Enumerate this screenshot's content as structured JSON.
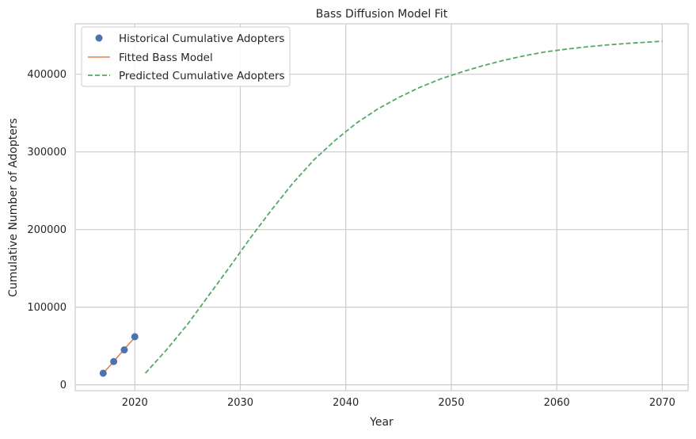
{
  "chart_data": {
    "type": "line",
    "title": "Bass Diffusion Model Fit",
    "xlabel": "Year",
    "ylabel": "Cumulative Number of Adopters",
    "xlim": [
      2014.35,
      2072.45
    ],
    "ylim": [
      -7500,
      465000
    ],
    "xticks": [
      2020,
      2030,
      2040,
      2050,
      2060,
      2070
    ],
    "yticks": [
      0,
      100000,
      200000,
      300000,
      400000
    ],
    "grid": true,
    "legend_position": "top-left",
    "series": [
      {
        "name": "Historical Cumulative Adopters",
        "kind": "scatter",
        "color": "#4c72b0",
        "x": [
          2017,
          2018,
          2019,
          2020
        ],
        "y": [
          15000,
          30000,
          45000,
          62000
        ]
      },
      {
        "name": "Fitted Bass Model",
        "kind": "line",
        "color": "#dd8452",
        "x": [
          2017,
          2018,
          2019,
          2020
        ],
        "y": [
          15000,
          30000,
          46000,
          61000
        ]
      },
      {
        "name": "Predicted Cumulative Adopters",
        "kind": "dashed-line",
        "color": "#55a868",
        "x": [
          2021,
          2023,
          2025,
          2027,
          2029,
          2031,
          2033,
          2035,
          2037,
          2039,
          2041,
          2043,
          2045,
          2047,
          2049,
          2051,
          2053,
          2055,
          2057,
          2059,
          2061,
          2063,
          2065,
          2067,
          2070
        ],
        "y": [
          15000,
          45000,
          78000,
          115000,
          152000,
          190000,
          226000,
          260000,
          290000,
          315000,
          337000,
          355000,
          370000,
          383000,
          394000,
          403000,
          411000,
          418000,
          424000,
          429000,
          432500,
          435500,
          438000,
          440000,
          442500
        ]
      }
    ]
  }
}
